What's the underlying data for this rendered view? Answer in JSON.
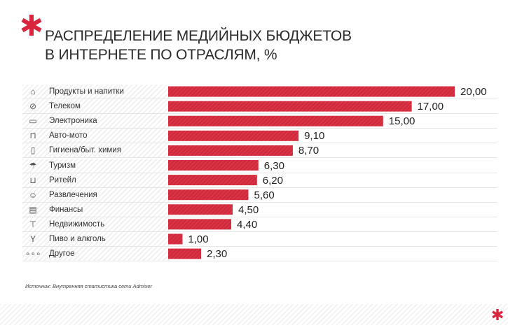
{
  "title": {
    "line1": "РАСПРЕДЕЛЕНИЕ МЕДИЙНЫХ БЮДЖЕТОВ",
    "line2": "В ИНТЕРНЕТЕ  ПО ОТРАСЛЯМ, %"
  },
  "source": "Источник: Внутренняя статистика сети Admixer",
  "colors": {
    "accent": "#d7263d",
    "bar": "#d22a3c"
  },
  "chart_data": {
    "type": "bar",
    "orientation": "horizontal",
    "title": "РАСПРЕДЕЛЕНИЕ МЕДИЙНЫХ БЮДЖЕТОВ В ИНТЕРНЕТЕ  ПО ОТРАСЛЯМ, %",
    "categories": [
      "Продукты и напитки",
      "Телеком",
      "Электроника",
      "Авто-мото",
      "Гигиена/быт. химия",
      "Туризм",
      "Ритейл",
      "Развлечения",
      "Финансы",
      "Недвижимость",
      "Пиво и алкголь",
      "Другое"
    ],
    "values": [
      20.0,
      17.0,
      15.0,
      9.1,
      8.7,
      6.3,
      6.2,
      5.6,
      4.5,
      4.4,
      1.0,
      2.3
    ],
    "value_labels": [
      "20,00",
      "17,00",
      "15,00",
      "9,10",
      "8,70",
      "6,30",
      "6,20",
      "5,60",
      "4,50",
      "4,40",
      "1,00",
      "2,30"
    ],
    "icons": [
      "food-drink-icon",
      "satellite-dish-icon",
      "laptop-icon",
      "car-icon",
      "bottle-icon",
      "beach-umbrella-icon",
      "shopping-cart-icon",
      "theater-masks-icon",
      "credit-card-icon",
      "crane-icon",
      "wine-glass-icon",
      "three-dots-icon"
    ],
    "xlim": [
      0,
      20
    ],
    "grid": false,
    "legend": "none"
  }
}
